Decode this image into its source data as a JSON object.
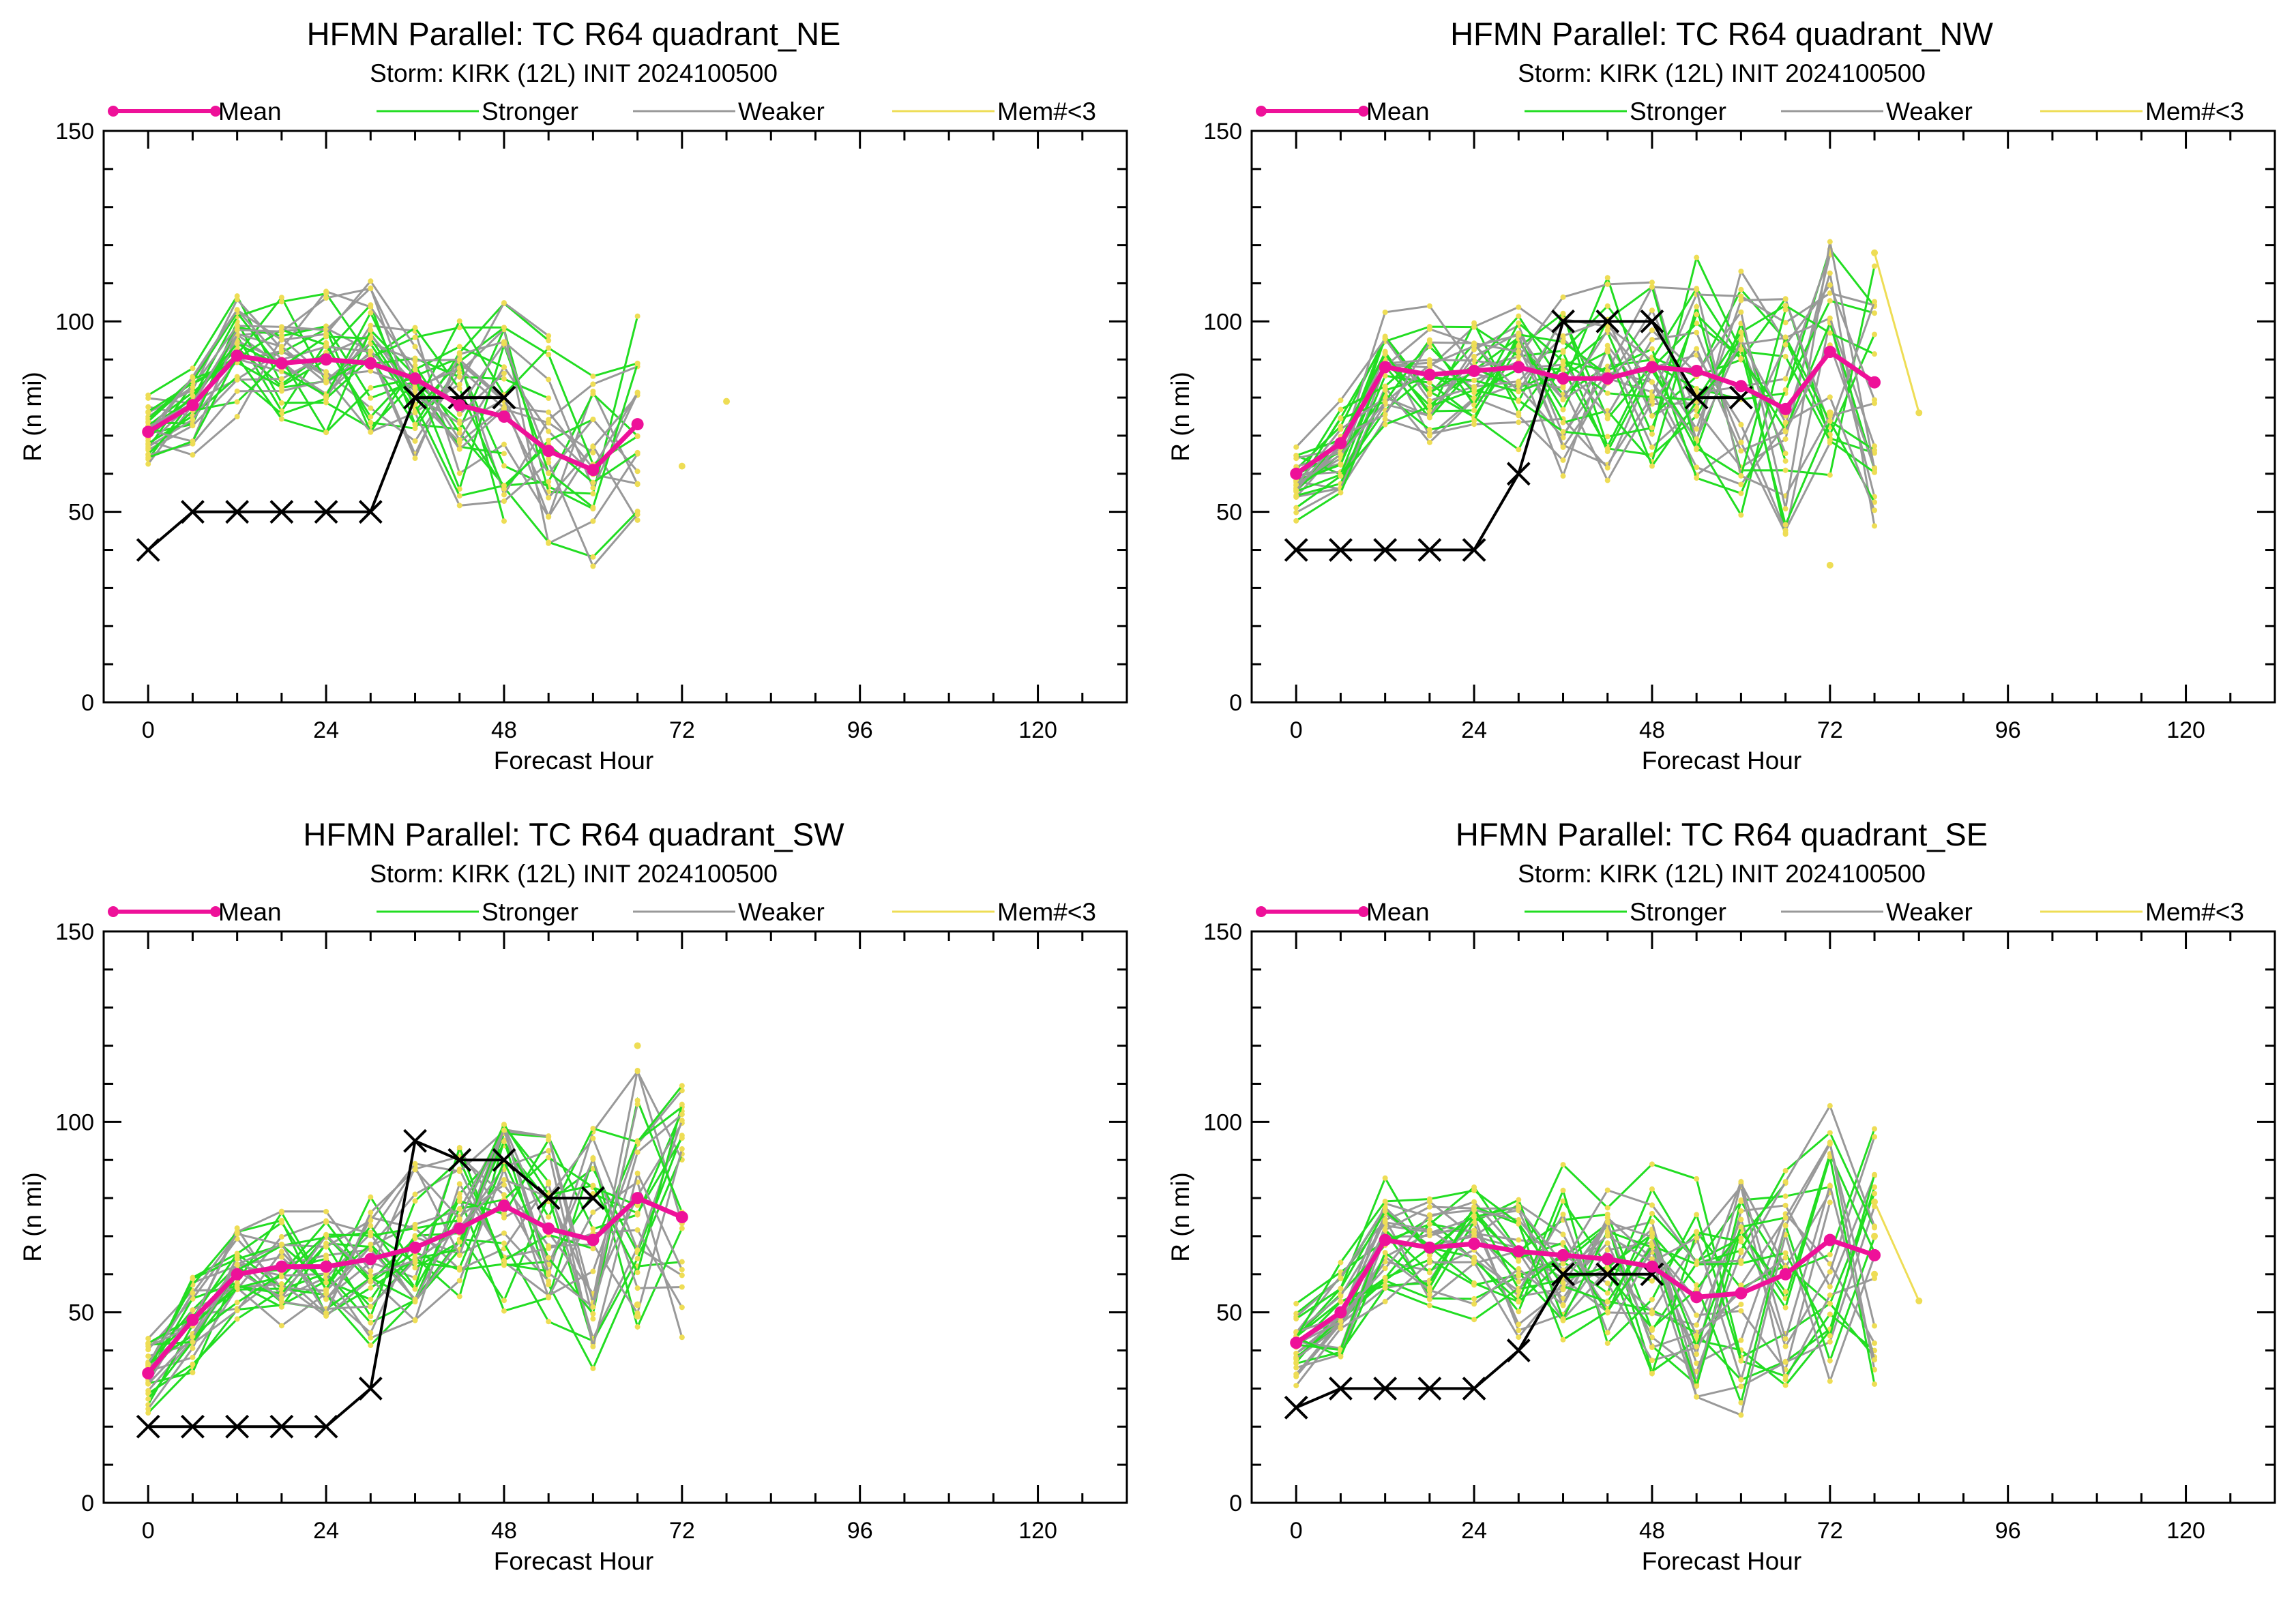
{
  "legend": [
    {
      "key": "mean",
      "label": "Mean",
      "color": "#ee1199"
    },
    {
      "key": "stronger",
      "label": "Stronger",
      "color": "#22dd22"
    },
    {
      "key": "weaker",
      "label": "Weaker",
      "color": "#999999"
    },
    {
      "key": "few",
      "label": "Mem#<3",
      "color": "#eedd55"
    }
  ],
  "colors": {
    "mean": "#ee1199",
    "stronger": "#22dd22",
    "weaker": "#999999",
    "few": "#eedd55",
    "best_track": "#000000"
  },
  "chart_data": [
    {
      "type": "line",
      "title": "HFMN Parallel: TC  R64 quadrant_NE",
      "subtitle": "Storm: KIRK (12L) INIT 2024100500",
      "xlabel": "Forecast Hour",
      "ylabel": "R (n mi)",
      "xlim": [
        -6,
        132
      ],
      "ylim": [
        0,
        150
      ],
      "xticks": [
        0,
        24,
        48,
        72,
        96,
        120
      ],
      "yticks": [
        0,
        50,
        100,
        150
      ],
      "mean": {
        "x": [
          0,
          6,
          12,
          18,
          24,
          30,
          36,
          42,
          48,
          54,
          60,
          66
        ],
        "y": [
          71,
          78,
          91,
          89,
          90,
          89,
          85,
          78,
          75,
          66,
          61,
          73
        ]
      },
      "best_track": {
        "x": [
          0,
          6,
          12,
          18,
          24,
          30,
          36,
          42,
          48
        ],
        "y": [
          40,
          50,
          50,
          50,
          50,
          50,
          80,
          80,
          80
        ]
      },
      "isolated_few_members": [
        {
          "x": 72,
          "y": 62
        },
        {
          "x": 78,
          "y": 79
        }
      ]
    },
    {
      "type": "line",
      "title": "HFMN Parallel: TC  R64 quadrant_NW",
      "subtitle": "Storm: KIRK (12L) INIT 2024100500",
      "xlabel": "Forecast Hour",
      "ylabel": "R (n mi)",
      "xlim": [
        -6,
        132
      ],
      "ylim": [
        0,
        150
      ],
      "xticks": [
        0,
        24,
        48,
        72,
        96,
        120
      ],
      "yticks": [
        0,
        50,
        100,
        150
      ],
      "mean": {
        "x": [
          0,
          6,
          12,
          18,
          24,
          30,
          36,
          42,
          48,
          54,
          60,
          66,
          72,
          78
        ],
        "y": [
          60,
          68,
          88,
          86,
          87,
          88,
          85,
          85,
          88,
          87,
          83,
          77,
          92,
          84
        ]
      },
      "best_track": {
        "x": [
          0,
          6,
          12,
          18,
          24,
          30,
          36,
          42,
          48,
          54,
          60
        ],
        "y": [
          40,
          40,
          40,
          40,
          40,
          60,
          100,
          100,
          100,
          80,
          80
        ]
      },
      "few_member_line": {
        "x": [
          78,
          84
        ],
        "y": [
          118,
          76
        ]
      },
      "isolated_few_members": [
        {
          "x": 72,
          "y": 36
        },
        {
          "x": 72,
          "y": 76
        }
      ]
    },
    {
      "type": "line",
      "title": "HFMN Parallel: TC  R64 quadrant_SW",
      "subtitle": "Storm: KIRK (12L) INIT 2024100500",
      "xlabel": "Forecast Hour",
      "ylabel": "R (n mi)",
      "xlim": [
        -6,
        132
      ],
      "ylim": [
        0,
        150
      ],
      "xticks": [
        0,
        24,
        48,
        72,
        96,
        120
      ],
      "yticks": [
        0,
        50,
        100,
        150
      ],
      "mean": {
        "x": [
          0,
          6,
          12,
          18,
          24,
          30,
          36,
          42,
          48,
          54,
          60,
          66,
          72
        ],
        "y": [
          34,
          48,
          60,
          62,
          62,
          64,
          67,
          72,
          78,
          72,
          69,
          80,
          75
        ]
      },
      "best_track": {
        "x": [
          0,
          6,
          12,
          18,
          24,
          30,
          36,
          42,
          48,
          54,
          60
        ],
        "y": [
          20,
          20,
          20,
          20,
          20,
          30,
          95,
          90,
          90,
          80,
          80
        ]
      },
      "isolated_few_members": [
        {
          "x": 66,
          "y": 120
        },
        {
          "x": 66,
          "y": 52
        },
        {
          "x": 66,
          "y": 49
        }
      ]
    },
    {
      "type": "line",
      "title": "HFMN Parallel: TC  R64 quadrant_SE",
      "subtitle": "Storm: KIRK (12L) INIT 2024100500",
      "xlabel": "Forecast Hour",
      "ylabel": "R (n mi)",
      "xlim": [
        -6,
        132
      ],
      "ylim": [
        0,
        150
      ],
      "xticks": [
        0,
        24,
        48,
        72,
        96,
        120
      ],
      "yticks": [
        0,
        50,
        100,
        150
      ],
      "mean": {
        "x": [
          0,
          6,
          12,
          18,
          24,
          30,
          36,
          42,
          48,
          54,
          60,
          66,
          72,
          78
        ],
        "y": [
          42,
          50,
          69,
          67,
          68,
          66,
          65,
          64,
          62,
          54,
          55,
          60,
          69,
          65
        ]
      },
      "best_track": {
        "x": [
          0,
          6,
          12,
          18,
          24,
          30,
          36,
          42,
          48
        ],
        "y": [
          25,
          30,
          30,
          30,
          30,
          40,
          60,
          60,
          60
        ]
      },
      "few_member_line": {
        "x": [
          78,
          84
        ],
        "y": [
          79,
          53
        ]
      },
      "isolated_few_members": [
        {
          "x": 78,
          "y": 70
        },
        {
          "x": 78,
          "y": 60
        }
      ]
    }
  ]
}
